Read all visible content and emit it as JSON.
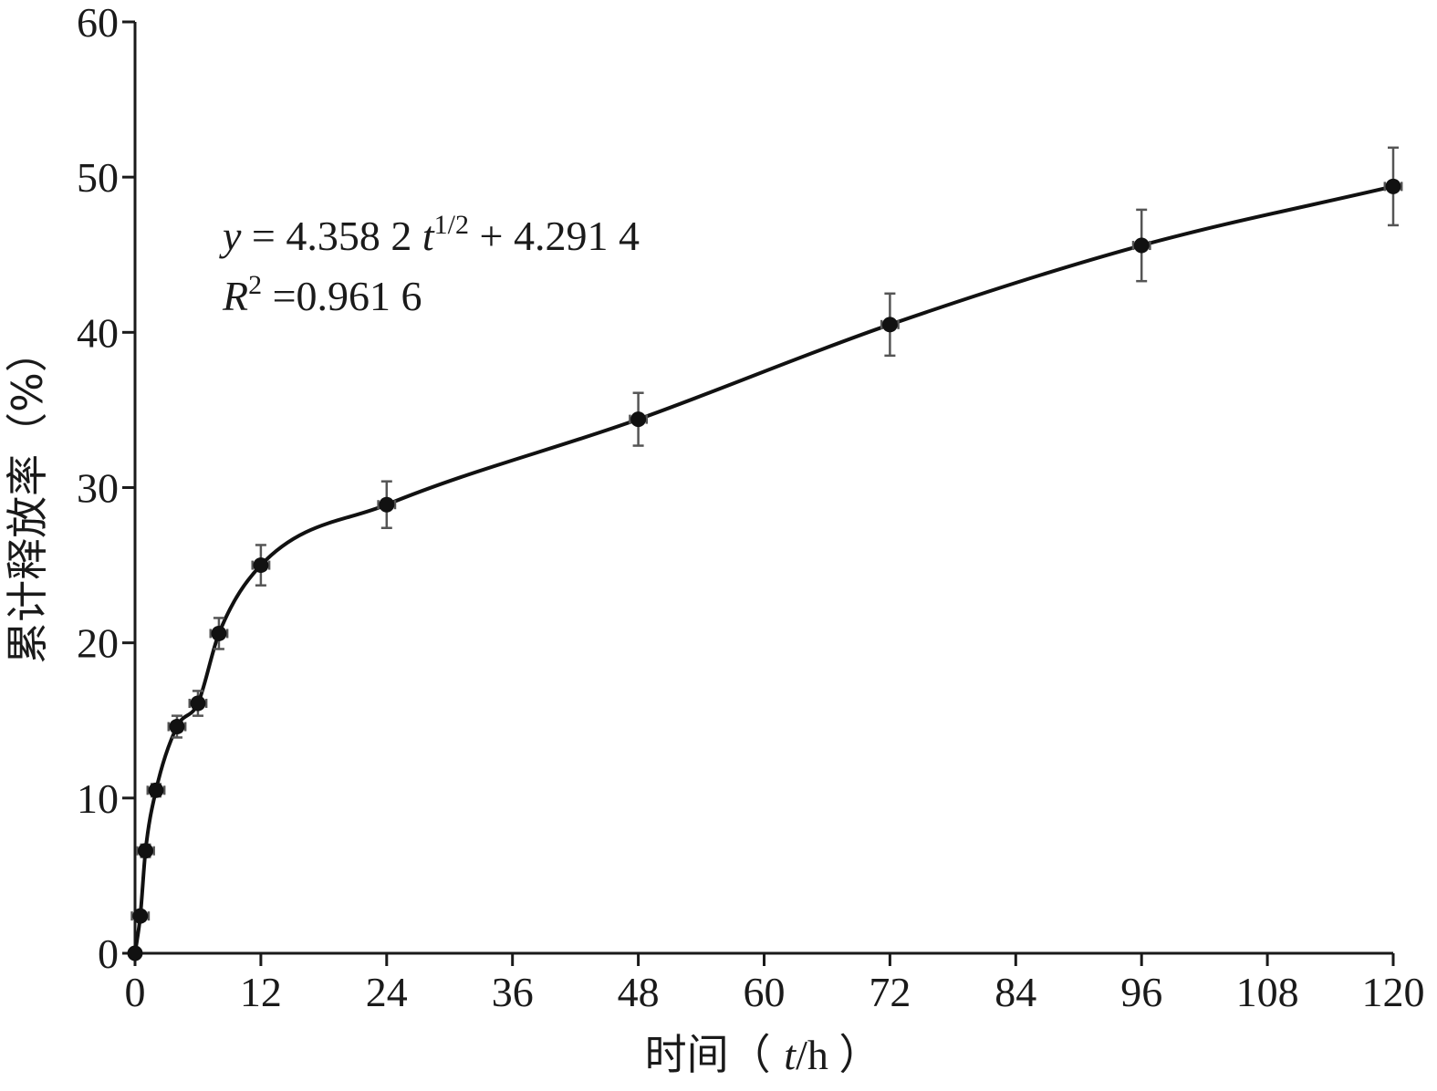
{
  "chart_data": {
    "type": "line",
    "xlabel_parts": [
      "时间（ ",
      "t",
      "/h ）"
    ],
    "ylabel": "累计释放率（%）",
    "xlim": [
      0,
      120
    ],
    "ylim": [
      0,
      60
    ],
    "xticks": [
      "0",
      "12",
      "24",
      "36",
      "48",
      "60",
      "72",
      "84",
      "96",
      "108",
      "120"
    ],
    "yticks": [
      "0",
      "10",
      "20",
      "30",
      "40",
      "50",
      "60"
    ],
    "x": [
      0,
      0.5,
      1,
      2,
      4,
      6,
      8,
      12,
      24,
      48,
      72,
      96,
      120
    ],
    "y": [
      0,
      2.4,
      6.6,
      10.5,
      14.6,
      16.1,
      20.6,
      25.0,
      28.9,
      34.4,
      40.5,
      45.6,
      49.4
    ],
    "y_error": [
      0,
      0.3,
      0.4,
      0.4,
      0.7,
      0.8,
      1.0,
      1.3,
      1.5,
      1.7,
      2.0,
      2.3,
      2.5
    ],
    "x_error": [
      0,
      0.8,
      0.8,
      0.8,
      0.8,
      0.8,
      0.8,
      0.8,
      0.8,
      0.8,
      0.8,
      0.8,
      0.8
    ],
    "annotation": {
      "eq_y": "y",
      "eq_mid": " = 4.358 2 ",
      "eq_t": "t",
      "eq_sup": "1/2",
      "eq_tail": " + 4.291 4",
      "r_R": "R",
      "r_sup": "2",
      "r_tail": " =0.961 6"
    },
    "grid": false,
    "legend": "none"
  }
}
